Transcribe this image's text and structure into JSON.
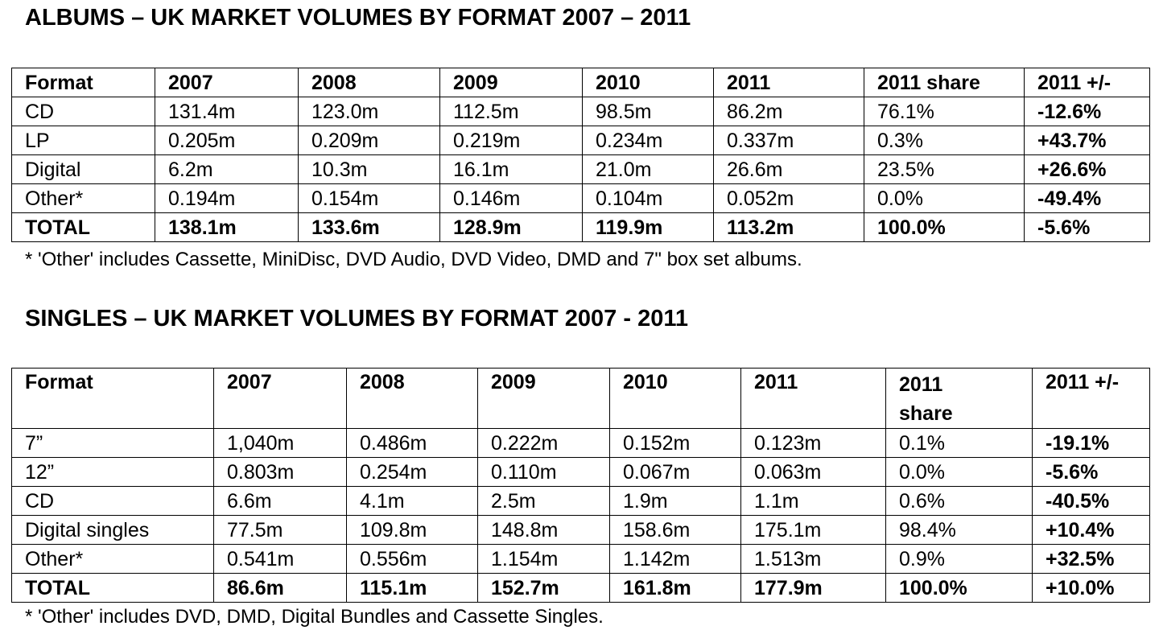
{
  "albums": {
    "title": "ALBUMS – UK MARKET VOLUMES BY FORMAT 2007 – 2011",
    "headers": [
      "Format",
      "2007",
      "2008",
      "2009",
      "2010",
      "2011",
      "2011 share",
      "2011 +/-"
    ],
    "rows": [
      [
        "CD",
        "131.4m",
        "123.0m",
        "112.5m",
        "98.5m",
        "86.2m",
        "76.1%",
        "-12.6%"
      ],
      [
        "LP",
        "0.205m",
        "0.209m",
        "0.219m",
        "0.234m",
        "0.337m",
        "0.3%",
        "+43.7%"
      ],
      [
        "Digital",
        "6.2m",
        "10.3m",
        "16.1m",
        "21.0m",
        "26.6m",
        "23.5%",
        "+26.6%"
      ],
      [
        "Other*",
        "0.194m",
        "0.154m",
        "0.146m",
        "0.104m",
        "0.052m",
        "0.0%",
        "-49.4%"
      ],
      [
        "TOTAL",
        "138.1m",
        "133.6m",
        "128.9m",
        "119.9m",
        "113.2m",
        "100.0%",
        "-5.6%"
      ]
    ],
    "footnote": "* 'Other' includes Cassette, MiniDisc, DVD Audio, DVD Video, DMD and 7\" box set albums."
  },
  "singles": {
    "title": "SINGLES – UK MARKET VOLUMES BY FORMAT 2007 - 2011",
    "headers": [
      "Format",
      "2007",
      "2008",
      "2009",
      "2010",
      "2011",
      "2011 share",
      "2011 +/-"
    ],
    "rows": [
      [
        "7”",
        "1,040m",
        "0.486m",
        "0.222m",
        "0.152m",
        "0.123m",
        "0.1%",
        "-19.1%"
      ],
      [
        "12”",
        "0.803m",
        "0.254m",
        "0.110m",
        "0.067m",
        "0.063m",
        "0.0%",
        "-5.6%"
      ],
      [
        "CD",
        "6.6m",
        "4.1m",
        "2.5m",
        "1.9m",
        "1.1m",
        "0.6%",
        "-40.5%"
      ],
      [
        "Digital singles",
        "77.5m",
        "109.8m",
        "148.8m",
        "158.6m",
        "175.1m",
        "98.4%",
        "+10.4%"
      ],
      [
        "Other*",
        "0.541m",
        "0.556m",
        "1.154m",
        "1.142m",
        "1.513m",
        "0.9%",
        "+32.5%"
      ],
      [
        "TOTAL",
        "86.6m",
        "115.1m",
        "152.7m",
        "161.8m",
        "177.9m",
        "100.0%",
        "+10.0%"
      ]
    ],
    "footnote": "* 'Other' includes DVD, DMD, Digital Bundles and Cassette Singles."
  }
}
